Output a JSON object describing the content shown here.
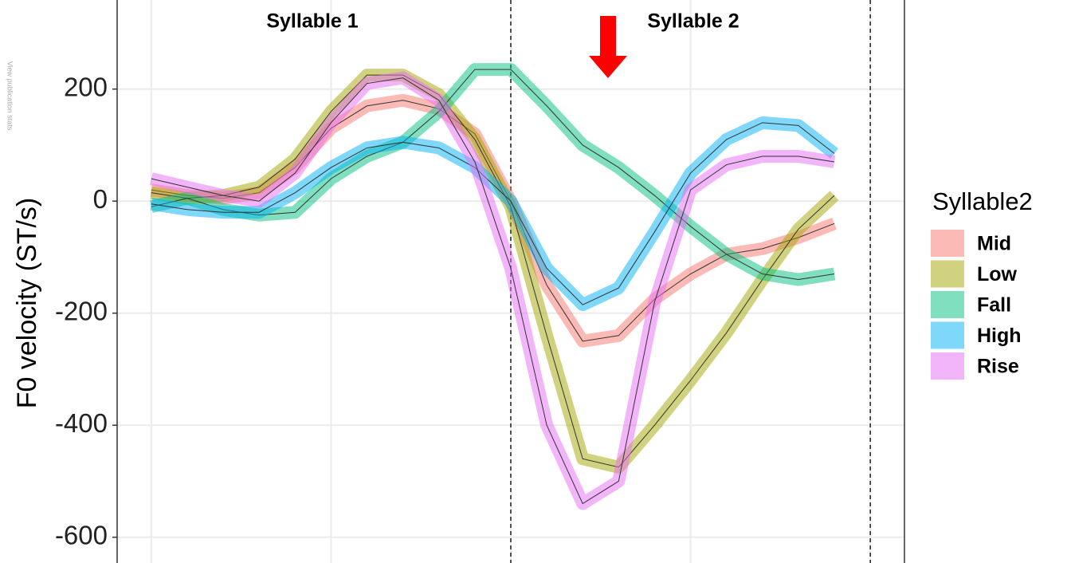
{
  "chart_data": {
    "type": "line",
    "watermark": "View publication stats",
    "ylabel": "F0 velocity (ST/s)",
    "annotations": [
      "Syllable 1",
      "Syllable 2"
    ],
    "legend_title": "Syllable2",
    "x": [
      1,
      2,
      3,
      4,
      5,
      6,
      7,
      8,
      9,
      10,
      11,
      12,
      13,
      14,
      15,
      16,
      17,
      18,
      19,
      20
    ],
    "xlim": [
      0.05,
      21.95
    ],
    "xgrid": [
      1,
      6,
      11,
      16,
      21
    ],
    "vlines": [
      11,
      21
    ],
    "ylim": [
      -646,
      359
    ],
    "yticks": [
      -600,
      -400,
      -200,
      0,
      200
    ],
    "grid": true,
    "series": [
      {
        "name": "Mid",
        "color": "#F8766D",
        "values": [
          20,
          10,
          5,
          15,
          60,
          130,
          170,
          180,
          165,
          120,
          0,
          -150,
          -250,
          -240,
          -175,
          -130,
          -95,
          -85,
          -65,
          -40
        ]
      },
      {
        "name": "Low",
        "color": "#A3A500",
        "values": [
          15,
          5,
          10,
          25,
          75,
          160,
          225,
          225,
          190,
          110,
          -10,
          -240,
          -460,
          -475,
          -400,
          -320,
          -235,
          -140,
          -50,
          10
        ]
      },
      {
        "name": "Fall",
        "color": "#00BF7D",
        "values": [
          -10,
          5,
          -15,
          -25,
          -20,
          40,
          80,
          105,
          160,
          235,
          235,
          170,
          100,
          60,
          10,
          -45,
          -95,
          -130,
          -140,
          -130
        ]
      },
      {
        "name": "High",
        "color": "#00B0F6",
        "values": [
          -5,
          -15,
          -20,
          -20,
          15,
          60,
          95,
          105,
          95,
          60,
          0,
          -120,
          -185,
          -155,
          -55,
          50,
          110,
          140,
          135,
          85
        ]
      },
      {
        "name": "Rise",
        "color": "#E76BF3",
        "values": [
          40,
          25,
          10,
          0,
          50,
          140,
          210,
          220,
          180,
          70,
          -120,
          -400,
          -540,
          -500,
          -180,
          20,
          65,
          80,
          80,
          70
        ]
      }
    ]
  }
}
